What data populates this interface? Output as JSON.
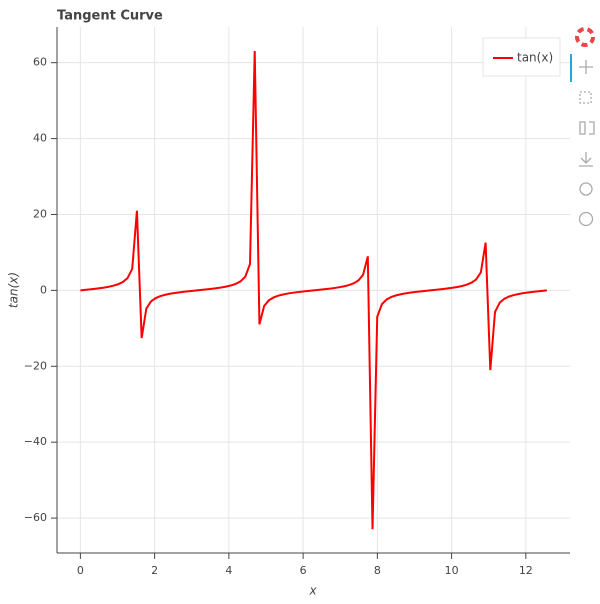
{
  "chart_data": {
    "type": "line",
    "title": "Tangent Curve",
    "x_label": "x",
    "y_label": "tan(x)",
    "x": [
      0,
      0.1269,
      0.2539,
      0.3808,
      0.5077,
      0.6347,
      0.7616,
      0.8885,
      1.0155,
      1.1424,
      1.2693,
      1.3963,
      1.5232,
      1.6501,
      1.7771,
      1.904,
      2.0309,
      2.1579,
      2.2848,
      2.4117,
      2.5387,
      2.6656,
      2.7925,
      2.9195,
      3.0464,
      3.1733,
      3.3003,
      3.4272,
      3.5541,
      3.6811,
      3.808,
      3.9349,
      4.0619,
      4.1888,
      4.3157,
      4.4427,
      4.5696,
      4.6965,
      4.8235,
      4.9504,
      5.0773,
      5.2043,
      5.3312,
      5.4581,
      5.5851,
      5.712,
      5.8389,
      5.9659,
      6.0928,
      6.2197,
      6.3467,
      6.4736,
      6.6005,
      6.7275,
      6.8544,
      6.9813,
      7.1083,
      7.2352,
      7.3621,
      7.4891,
      7.616,
      7.7429,
      7.8699,
      7.9968,
      8.1237,
      8.2507,
      8.3776,
      8.5045,
      8.6315,
      8.7584,
      8.8853,
      9.0123,
      9.1392,
      9.2661,
      9.3931,
      9.52,
      9.6469,
      9.7739,
      9.9008,
      10.0277,
      10.1547,
      10.2816,
      10.4085,
      10.5355,
      10.6624,
      10.7893,
      10.9163,
      11.0432,
      11.1701,
      11.2971,
      11.424,
      11.5509,
      11.6779,
      11.8048,
      11.9317,
      12.0587,
      12.1856,
      12.3125,
      12.4395,
      12.5664
    ],
    "series": [
      {
        "name": "tan(x)",
        "color": "#ff0000",
        "values": [
          0,
          0.1276,
          0.2595,
          0.4,
          0.5563,
          0.7365,
          0.9536,
          1.231,
          1.611,
          2.187,
          3.216,
          5.671,
          20.99,
          -12.58,
          -4.78,
          -2.891,
          -2.017,
          -1.503,
          -1.154,
          -0.8947,
          -0.6884,
          -0.5156,
          -0.364,
          -0.2259,
          -0.0955,
          0.0318,
          0.16,
          0.2936,
          0.4381,
          0.5986,
          0.7865,
          1.016,
          1.314,
          1.732,
          2.387,
          3.618,
          6.955,
          63.08,
          -8.966,
          -4.122,
          -2.615,
          -1.866,
          -1.404,
          -1.082,
          -0.8391,
          -0.6426,
          -0.476,
          -0.3284,
          -0.1927,
          -0.0635,
          0.0636,
          0.1927,
          0.3285,
          0.4761,
          0.6426,
          0.8391,
          1.082,
          1.406,
          1.866,
          2.615,
          4.123,
          8.969,
          -62.93,
          -6.953,
          -3.617,
          -2.386,
          -1.732,
          -1.314,
          -1.016,
          -0.7865,
          -0.5986,
          -0.4381,
          -0.2936,
          -0.16,
          -0.0318,
          0.0955,
          0.2259,
          0.364,
          0.5156,
          0.6884,
          0.8947,
          1.154,
          1.503,
          2.017,
          2.891,
          4.78,
          12.58,
          -20.99,
          -5.671,
          -3.216,
          -2.187,
          -1.611,
          -1.231,
          -0.9536,
          -0.7365,
          -0.5563,
          -0.4,
          -0.2595,
          -0.1276,
          0
        ]
      }
    ],
    "xlim": [
      -0.63,
      13.19
    ],
    "ylim": [
      -69.2,
      69.4
    ],
    "xticks": [
      0,
      2,
      4,
      6,
      8,
      10,
      12
    ],
    "yticks": [
      {
        "value": -60,
        "label": "−60"
      },
      {
        "value": -40,
        "label": "−40"
      },
      {
        "value": -20,
        "label": "−20"
      },
      0,
      20,
      40,
      60
    ],
    "grid": true,
    "legend": "top-right"
  }
}
